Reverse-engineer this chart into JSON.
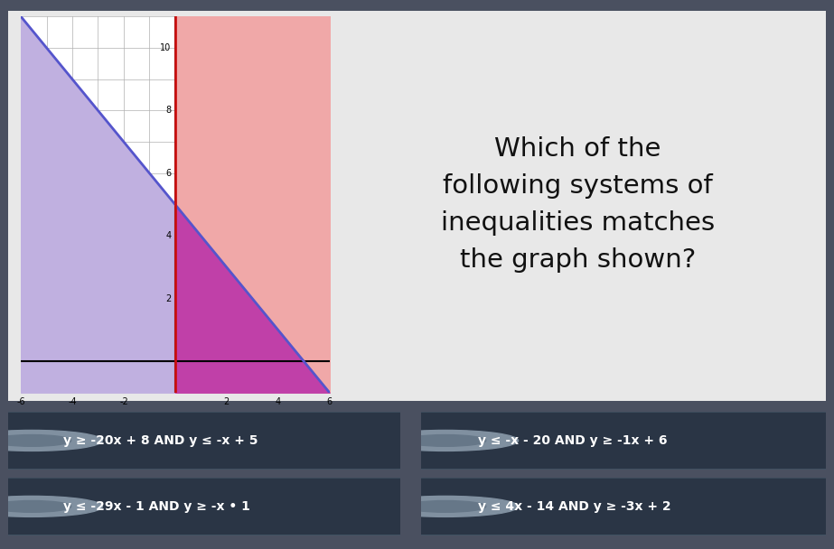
{
  "xlim": [
    -6,
    6
  ],
  "ylim": [
    -1,
    11
  ],
  "xtick_vals": [
    -6,
    -4,
    -2,
    2,
    4,
    6
  ],
  "xtick_labels": [
    "-6",
    "-4",
    "-2",
    "2",
    "4",
    "6"
  ],
  "ytick_vals": [
    2,
    4,
    6,
    8,
    10
  ],
  "ytick_labels": [
    "2",
    "4",
    "6",
    "8",
    "10"
  ],
  "line1_slope": -1,
  "line1_intercept": 5,
  "blue_fill": "#c0b0e0",
  "pink_fill": "#f0a8a8",
  "overlap_fill": "#c040a8",
  "line_col": "#5555cc",
  "red_col": "#cc1111",
  "grid_col": "#b0b0b0",
  "bg_outer": "#4a5060",
  "bg_panel": "#e8e8e8",
  "bg_graph": "#ffffff",
  "btn_bg": "#2a3545",
  "btn_text": "#ffffff",
  "dot_col": "#8090a0",
  "title": "Which of the\nfollowing systems of\ninequalities matches\nthe graph shown?",
  "title_color": "#111111",
  "opt1": "y ≥ -20x + 8 AND y ≤ -x + 5",
  "opt2": "y ≤ -x - 20 AND y ≥ -1x + 6",
  "opt3": "y ≤ -29x - 1 AND y ≥ -x • 1",
  "opt4": "y ≤ 4x - 14 AND y ≥ -3x + 2"
}
